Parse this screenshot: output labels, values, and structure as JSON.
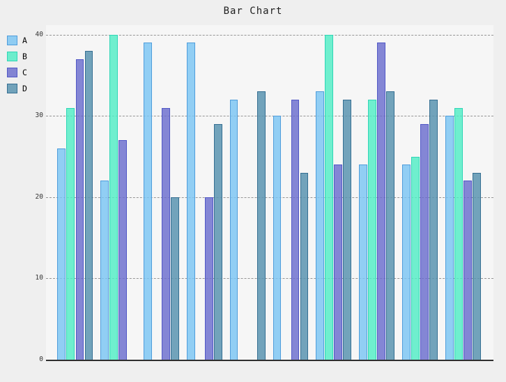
{
  "chart_data": {
    "type": "bar",
    "title": "Bar Chart",
    "n_groups": 10,
    "x_tick_labels": [],
    "series": [
      {
        "name": "A",
        "color": "#8FCBF0",
        "edge_color": "#4f9ddb",
        "fill_rgba": "rgba(122,196,243,0.82)",
        "values": [
          26,
          22,
          39,
          39,
          32,
          30,
          33,
          24,
          24,
          30
        ]
      },
      {
        "name": "B",
        "color": "#72EECB",
        "edge_color": "#2fd5b6",
        "fill_rgba": "rgba(80,237,196,0.82)",
        "values": [
          31,
          40,
          null,
          null,
          null,
          null,
          40,
          32,
          25,
          31
        ]
      },
      {
        "name": "C",
        "color": "#8689D0",
        "edge_color": "#5158c6",
        "fill_rgba": "rgba(106,109,205,0.82)",
        "values": [
          37,
          27,
          31,
          20,
          null,
          32,
          24,
          39,
          29,
          22
        ]
      },
      {
        "name": "D",
        "color": "#77A6BD",
        "edge_color": "#356f92",
        "fill_rgba": "rgba(91,148,176,0.85)",
        "values": [
          38,
          null,
          20,
          29,
          33,
          23,
          32,
          33,
          32,
          23
        ]
      }
    ],
    "y_ticks": [
      0,
      10,
      20,
      30,
      40
    ],
    "ylim": [
      0,
      41.2
    ],
    "grid": "horizontal dashed",
    "grid_color": "#949494",
    "legend_position": "upper-left outside plot",
    "missing_bars_rendered_as": "absent"
  },
  "colors": {
    "figure_bg": "#efefef",
    "axes_bg": "#f6f6f6",
    "axis_line": "#2e2e2e",
    "title_text": "#1f1f1f",
    "tick_text": "#333333"
  }
}
